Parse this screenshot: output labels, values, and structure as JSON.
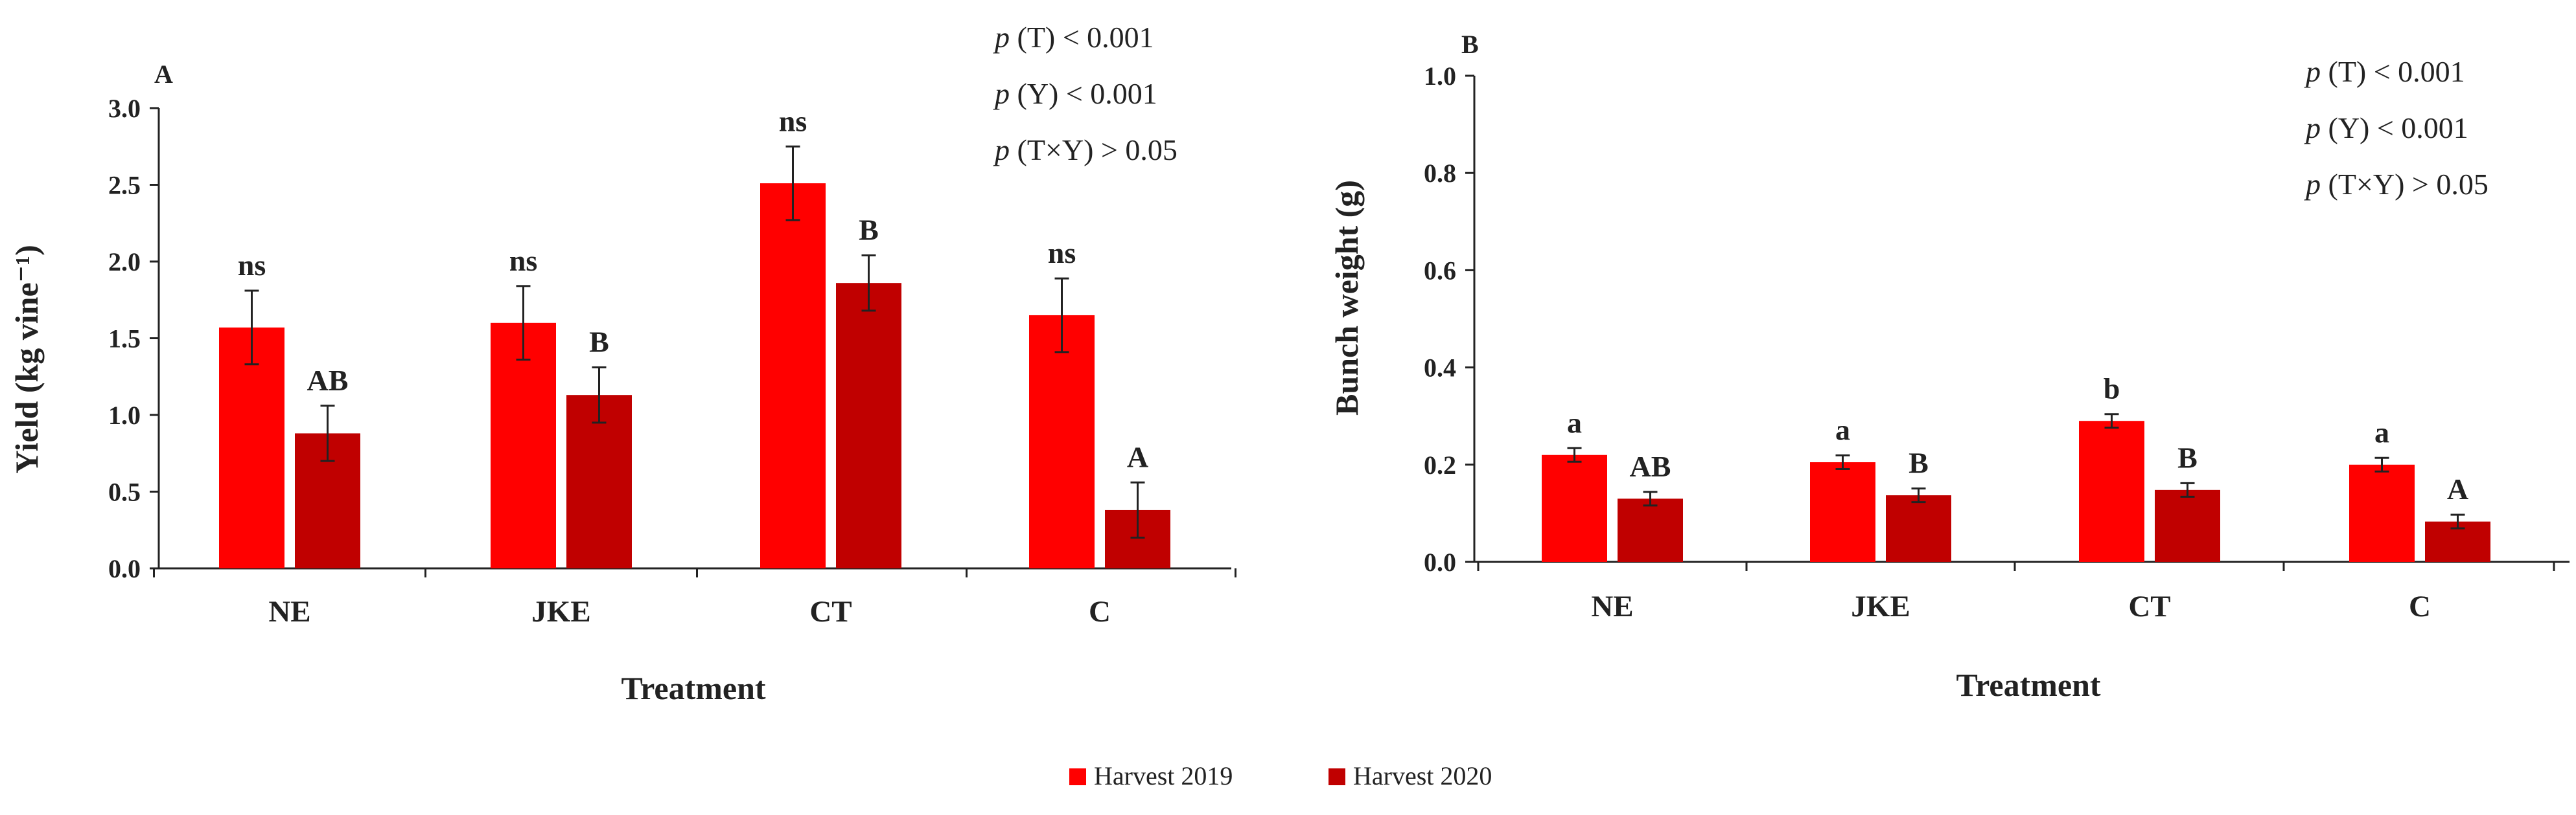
{
  "colors": {
    "harvest_2019": "#ff0000",
    "harvest_2020": "#c00000",
    "axis": "#222222"
  },
  "legend": [
    {
      "label": "Harvest 2019",
      "color": "#ff0000"
    },
    {
      "label": "Harvest 2020",
      "color": "#c00000"
    }
  ],
  "chart_data": [
    {
      "type": "bar",
      "panel_label": "A",
      "title": "",
      "xlabel": "Treatment",
      "ylabel": "Yield (kg vine⁻¹)",
      "ylim": [
        0,
        3.0
      ],
      "yticks": [
        0.0,
        0.5,
        1.0,
        1.5,
        2.0,
        2.5,
        3.0
      ],
      "ytick_labels": [
        "0.0",
        "0.5",
        "1.0",
        "1.5",
        "2.0",
        "2.5",
        "3.0"
      ],
      "categories": [
        "NE",
        "JKE",
        "CT",
        "C"
      ],
      "series": [
        {
          "name": "Harvest 2019",
          "values": [
            1.57,
            1.6,
            2.51,
            1.65
          ],
          "errors": [
            0.24,
            0.24,
            0.24,
            0.24
          ],
          "labels": [
            "ns",
            "ns",
            "ns",
            "ns"
          ]
        },
        {
          "name": "Harvest 2020",
          "values": [
            0.88,
            1.13,
            1.86,
            0.38
          ],
          "errors": [
            0.18,
            0.18,
            0.18,
            0.18
          ],
          "labels": [
            "AB",
            "B",
            "B",
            "A"
          ]
        }
      ],
      "stats_prefix": "p",
      "stats": [
        " (T) < 0.001",
        " (Y) < 0.001",
        " (T×Y) > 0.05"
      ]
    },
    {
      "type": "bar",
      "panel_label": "B",
      "title": "",
      "xlabel": "Treatment",
      "ylabel": "Bunch weight (g)",
      "ylim": [
        0,
        1.0
      ],
      "yticks": [
        0.0,
        0.2,
        0.4,
        0.6,
        0.8,
        1.0
      ],
      "ytick_labels": [
        "0.0",
        "0.2",
        "0.4",
        "0.6",
        "0.8",
        "1.0"
      ],
      "categories": [
        "NE",
        "JKE",
        "CT",
        "C"
      ],
      "series": [
        {
          "name": "Harvest 2019",
          "values": [
            0.22,
            0.205,
            0.29,
            0.2
          ],
          "errors": [
            0.014,
            0.014,
            0.014,
            0.014
          ],
          "labels": [
            "a",
            "a",
            "b",
            "a"
          ]
        },
        {
          "name": "Harvest 2020",
          "values": [
            0.13,
            0.137,
            0.148,
            0.083
          ],
          "errors": [
            0.014,
            0.014,
            0.014,
            0.014
          ],
          "labels": [
            "AB",
            "B",
            "B",
            "A"
          ]
        }
      ],
      "stats_prefix": "p",
      "stats": [
        " (T) < 0.001",
        " (Y) < 0.001",
        " (T×Y) > 0.05"
      ]
    }
  ]
}
